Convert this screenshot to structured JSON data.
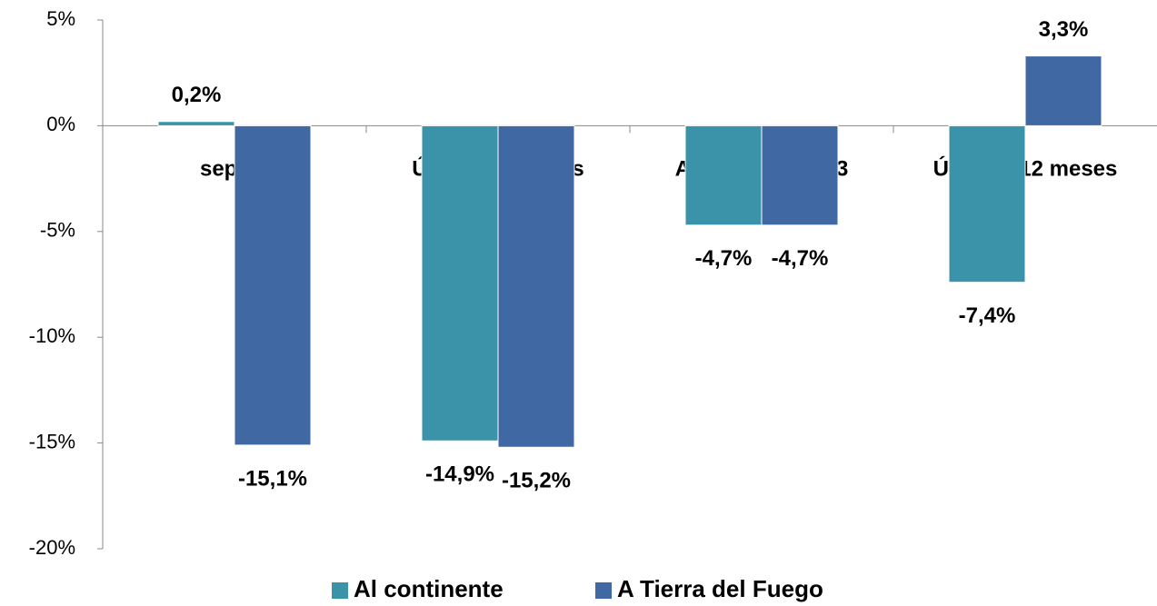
{
  "chart_data": {
    "type": "bar",
    "categories": [
      "sep-13",
      "Últimos 3 meses",
      "Acumulado 2013",
      "Últimos 12 meses"
    ],
    "series": [
      {
        "name": "Al continente",
        "color": "#3a93a8",
        "values": [
          0.2,
          -14.9,
          -4.7,
          -7.4
        ],
        "value_labels": [
          "0,2%",
          "-14,9%",
          "-4,7%",
          "-7,4%"
        ]
      },
      {
        "name": "A Tierra del Fuego",
        "color": "#4068a3",
        "values": [
          -15.1,
          -15.2,
          -4.7,
          3.3
        ],
        "value_labels": [
          "-15,1%",
          "-15,2%",
          "-4,7%",
          "3,3%"
        ]
      }
    ],
    "ylim": [
      -20,
      5
    ],
    "yticks": [
      {
        "value": -20,
        "label": "-20%"
      },
      {
        "value": -15,
        "label": "-15%"
      },
      {
        "value": -10,
        "label": "-10%"
      },
      {
        "value": -5,
        "label": "-5%"
      },
      {
        "value": 0,
        "label": "0%"
      },
      {
        "value": 5,
        "label": "5%"
      }
    ],
    "grid": false,
    "legend": "bottom"
  }
}
